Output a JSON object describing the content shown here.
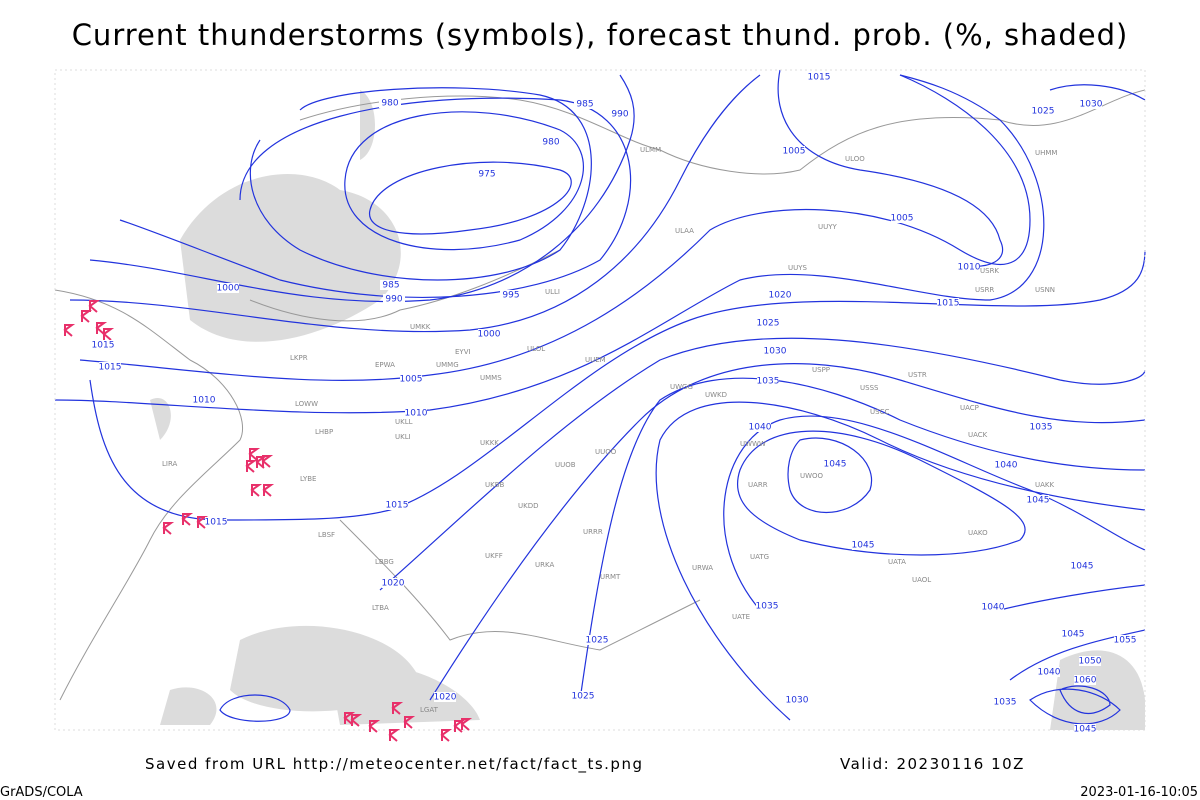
{
  "header": {
    "title": "Current thunderstorms (symbols), forecast thund. prob. (%, shaded)"
  },
  "map": {
    "isobar_labels": [
      980,
      985,
      990,
      980,
      975,
      985,
      990,
      995,
      1000,
      1000,
      1005,
      1010,
      1015,
      1015,
      1010,
      1015,
      1015,
      1020,
      1020,
      1025,
      1025,
      1030,
      1035,
      1015,
      1005,
      1005,
      1010,
      1015,
      1020,
      1025,
      1030,
      1035,
      1040,
      1045,
      1045,
      1045,
      1040,
      1035,
      1040,
      1045,
      1025,
      1030,
      1035,
      1040,
      1045,
      1050,
      1055,
      1060,
      1045
    ],
    "station_labels": [
      "LKPR",
      "EPWA",
      "UMMG",
      "EYVI",
      "UMKK",
      "ULLI",
      "ULOL",
      "UUEM",
      "UMMS",
      "UKLL",
      "UKLI",
      "LHBP",
      "LOWW",
      "LIRA",
      "LYBE",
      "LBSF",
      "LBBG",
      "LGAT",
      "LTBA",
      "UKBB",
      "UKKK",
      "UKDD",
      "UKFF",
      "URKA",
      "URRR",
      "UUOO",
      "UUOB",
      "UWKD",
      "UWGG",
      "UWWW",
      "URMT",
      "URWA",
      "UATG",
      "UATE",
      "UARR",
      "UWOO",
      "USSS",
      "USCC",
      "USTR",
      "UACP",
      "UACK",
      "UAKK",
      "UAKO",
      "UATA",
      "UAOL",
      "ULMM",
      "ULAA",
      "ULOO",
      "USNN",
      "USRR",
      "USRK",
      "USPP",
      "UUYY",
      "UUYS",
      "UHMM"
    ]
  },
  "footer": {
    "source": "Saved from URL http://meteocenter.net/fact/fact_ts.png",
    "valid": "Valid: 20230116 10Z",
    "software": "GrADS/COLA",
    "timestamp": "2023-01-16-10:05"
  }
}
